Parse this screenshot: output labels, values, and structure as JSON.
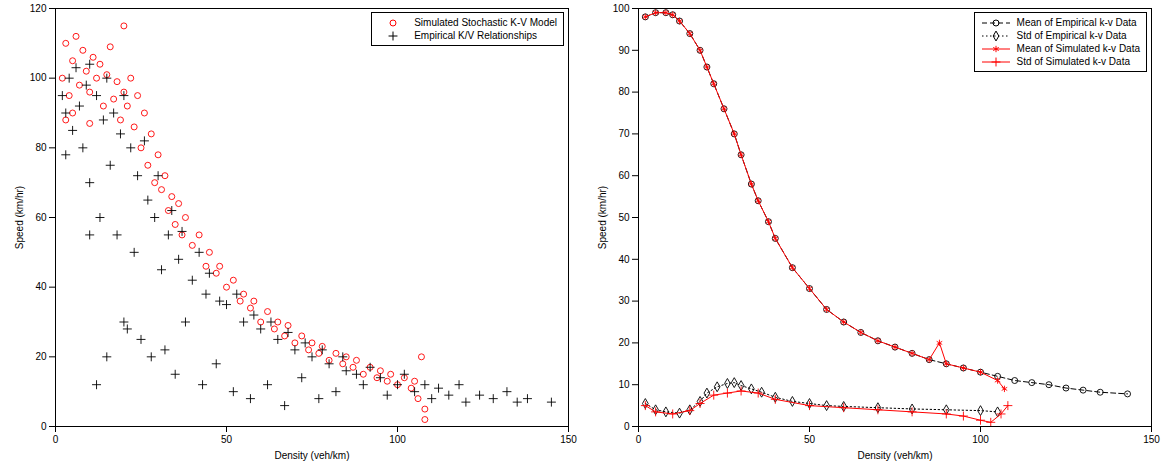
{
  "chart_data": [
    {
      "type": "scatter",
      "x_label": "Density (veh/km)",
      "y_label": "Speed (km/hr)",
      "xlim": [
        0,
        150
      ],
      "xticks": [
        0,
        50,
        100,
        150
      ],
      "ylim": [
        0,
        120
      ],
      "yticks": [
        0,
        20,
        40,
        60,
        80,
        100,
        120
      ],
      "legend": "top-right",
      "series": [
        {
          "name": "Simulated Stochastic K-V Model",
          "color": "#ff0000",
          "marker": "circle",
          "x": [
            2,
            3,
            4,
            5,
            6,
            7,
            8,
            9,
            10,
            11,
            12,
            13,
            14,
            15,
            16,
            17,
            18,
            19,
            20,
            20,
            21,
            22,
            23,
            24,
            25,
            26,
            27,
            28,
            29,
            30,
            31,
            32,
            33,
            34,
            35,
            36,
            37,
            38,
            40,
            42,
            44,
            45,
            47,
            48,
            50,
            52,
            54,
            55,
            57,
            58,
            60,
            62,
            64,
            65,
            67,
            68,
            70,
            72,
            74,
            75,
            77,
            78,
            80,
            82,
            84,
            85,
            87,
            88,
            90,
            92,
            94,
            95,
            97,
            98,
            100,
            102,
            104,
            105,
            106,
            107,
            108,
            108,
            3,
            5,
            10
          ],
          "values": [
            100,
            110,
            95,
            105,
            112,
            98,
            108,
            102,
            96,
            106,
            100,
            104,
            92,
            101,
            109,
            94,
            99,
            88,
            115,
            96,
            92,
            100,
            86,
            95,
            80,
            90,
            75,
            84,
            70,
            78,
            68,
            72,
            62,
            66,
            58,
            64,
            55,
            60,
            52,
            55,
            46,
            50,
            44,
            46,
            40,
            42,
            36,
            38,
            34,
            36,
            30,
            33,
            28,
            30,
            26,
            29,
            24,
            26,
            22,
            24,
            21,
            23,
            19,
            21,
            18,
            20,
            17,
            19,
            15,
            17,
            14,
            16,
            13,
            15,
            12,
            14,
            11,
            13,
            8,
            20,
            5,
            2,
            88,
            90,
            87
          ]
        },
        {
          "name": "Empirical K/V Relationships",
          "color": "#000000",
          "marker": "plus",
          "x": [
            2,
            3,
            3,
            4,
            5,
            6,
            7,
            8,
            9,
            10,
            10,
            12,
            13,
            14,
            15,
            16,
            17,
            18,
            19,
            20,
            20,
            21,
            22,
            23,
            24,
            25,
            26,
            27,
            28,
            29,
            30,
            31,
            32,
            33,
            34,
            35,
            36,
            37,
            38,
            40,
            42,
            43,
            44,
            45,
            47,
            48,
            50,
            52,
            53,
            55,
            57,
            58,
            60,
            62,
            63,
            65,
            67,
            68,
            70,
            72,
            73,
            75,
            77,
            78,
            80,
            82,
            84,
            85,
            88,
            90,
            92,
            95,
            97,
            100,
            102,
            105,
            108,
            110,
            112,
            115,
            118,
            120,
            124,
            128,
            132,
            135,
            138,
            145,
            12,
            15,
            10
          ],
          "values": [
            95,
            90,
            78,
            100,
            85,
            103,
            92,
            80,
            98,
            70,
            104,
            95,
            60,
            88,
            100,
            75,
            90,
            55,
            84,
            95,
            30,
            28,
            80,
            50,
            72,
            25,
            82,
            65,
            20,
            60,
            72,
            45,
            22,
            55,
            62,
            15,
            48,
            56,
            30,
            42,
            50,
            12,
            38,
            44,
            18,
            36,
            35,
            10,
            38,
            30,
            8,
            32,
            28,
            12,
            30,
            25,
            6,
            27,
            22,
            14,
            24,
            20,
            8,
            22,
            18,
            10,
            20,
            16,
            15,
            12,
            17,
            14,
            9,
            12,
            15,
            10,
            12,
            8,
            11,
            9,
            12,
            7,
            9,
            8,
            10,
            7,
            8,
            7,
            12,
            20,
            55
          ]
        }
      ]
    },
    {
      "type": "line",
      "x_label": "Density (veh/km)",
      "y_label": "Speed (km/hr)",
      "xlim": [
        0,
        150
      ],
      "xticks": [
        0,
        50,
        100,
        150
      ],
      "ylim": [
        0,
        100
      ],
      "yticks": [
        0,
        10,
        20,
        30,
        40,
        50,
        60,
        70,
        80,
        90,
        100
      ],
      "legend": "top-right",
      "series": [
        {
          "name": "Mean of Empirical k-v Data",
          "color": "#000000",
          "marker": "circle",
          "line_style": "dashed",
          "x": [
            2,
            5,
            8,
            10,
            12,
            15,
            18,
            20,
            22,
            25,
            28,
            30,
            33,
            35,
            38,
            40,
            45,
            50,
            55,
            60,
            65,
            70,
            75,
            80,
            85,
            90,
            95,
            100,
            105,
            110,
            115,
            120,
            125,
            130,
            135,
            143
          ],
          "values": [
            98,
            99,
            99,
            98.5,
            97,
            94,
            90,
            86,
            82,
            76,
            70,
            65,
            58,
            54,
            49,
            45,
            38,
            33,
            28,
            25,
            22.5,
            20.5,
            19,
            17.5,
            16,
            15,
            14,
            13,
            12,
            11,
            10.5,
            10,
            9.2,
            8.7,
            8.2,
            7.8
          ]
        },
        {
          "name": "Std of Empirical k-v Data",
          "color": "#000000",
          "marker": "diamond",
          "line_style": "dotted",
          "x": [
            2,
            5,
            8,
            12,
            15,
            18,
            20,
            23,
            26,
            28,
            30,
            33,
            36,
            40,
            45,
            50,
            55,
            60,
            70,
            80,
            90,
            100,
            105
          ],
          "values": [
            5.5,
            4,
            3.5,
            3.2,
            4,
            6,
            8,
            9.5,
            10.3,
            10.5,
            9.8,
            9,
            8.2,
            7,
            6,
            5.5,
            5,
            4.8,
            4.5,
            4.2,
            4,
            3.8,
            3.5
          ]
        },
        {
          "name": "Mean of Simulated k-v Data",
          "color": "#ff0000",
          "marker": "asterisk",
          "line_style": "solid",
          "x": [
            2,
            5,
            8,
            10,
            12,
            15,
            18,
            20,
            22,
            25,
            28,
            30,
            33,
            35,
            38,
            40,
            45,
            50,
            55,
            60,
            65,
            70,
            75,
            80,
            85,
            88,
            90,
            95,
            100,
            105,
            107
          ],
          "values": [
            98,
            99,
            99,
            98.5,
            97,
            94,
            90,
            86,
            82,
            76,
            70,
            65,
            58,
            54,
            49,
            45,
            38,
            33,
            28,
            25,
            22.5,
            20.5,
            19,
            17.5,
            16,
            20,
            15,
            14,
            13,
            11,
            9
          ]
        },
        {
          "name": "Std of Simulated k-v Data",
          "color": "#ff0000",
          "marker": "plus",
          "line_style": "solid",
          "x": [
            2,
            5,
            10,
            15,
            18,
            22,
            26,
            30,
            35,
            40,
            50,
            60,
            70,
            80,
            90,
            95,
            100,
            103,
            106,
            108
          ],
          "values": [
            5,
            3.5,
            3,
            3.8,
            5.5,
            7.5,
            8,
            8.5,
            8,
            6.5,
            5,
            4.5,
            4,
            3.5,
            3,
            2.5,
            1.5,
            1,
            3,
            5
          ]
        }
      ]
    }
  ]
}
